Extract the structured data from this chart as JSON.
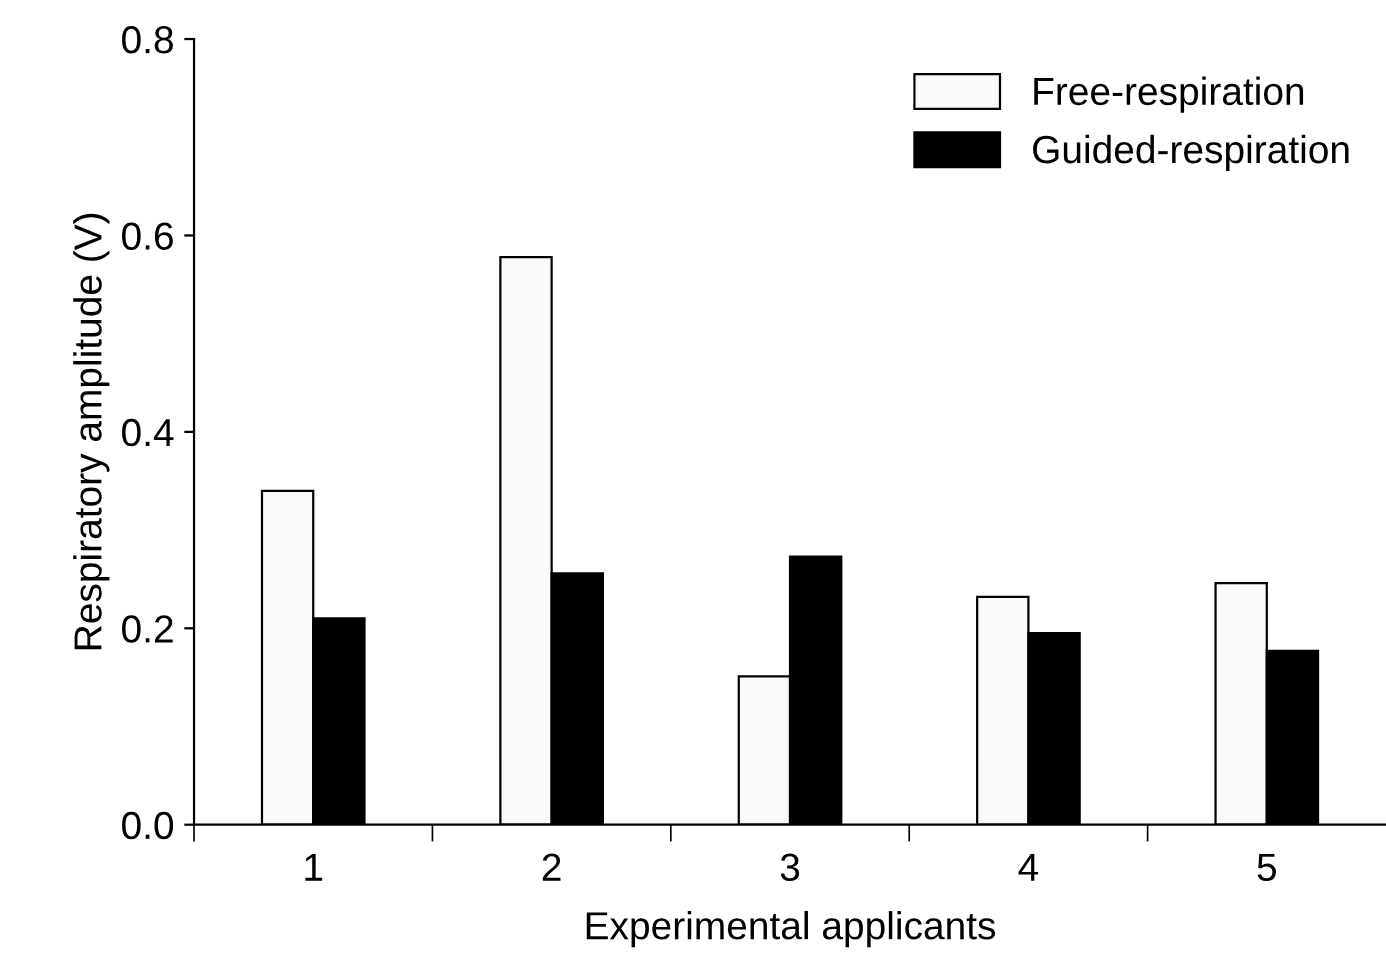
{
  "chart_data": {
    "type": "bar",
    "xlabel": "Experimental applicants",
    "ylabel": "Respiratory amplitude (V)",
    "categories": [
      "1",
      "2",
      "3",
      "4",
      "5"
    ],
    "series": [
      {
        "name": "Free-respiration",
        "color": "#fafafa",
        "values": [
          0.34,
          0.578,
          0.151,
          0.232,
          0.246
        ]
      },
      {
        "name": "Guided-respiration",
        "color": "#000000",
        "values": [
          0.21,
          0.256,
          0.273,
          0.195,
          0.177
        ]
      }
    ],
    "ylim": [
      0,
      0.8
    ],
    "yticks": [
      {
        "value": 0,
        "label": "0.0"
      },
      0.2,
      0.4,
      0.6,
      0.8
    ],
    "grid": false,
    "legend": "top right"
  }
}
